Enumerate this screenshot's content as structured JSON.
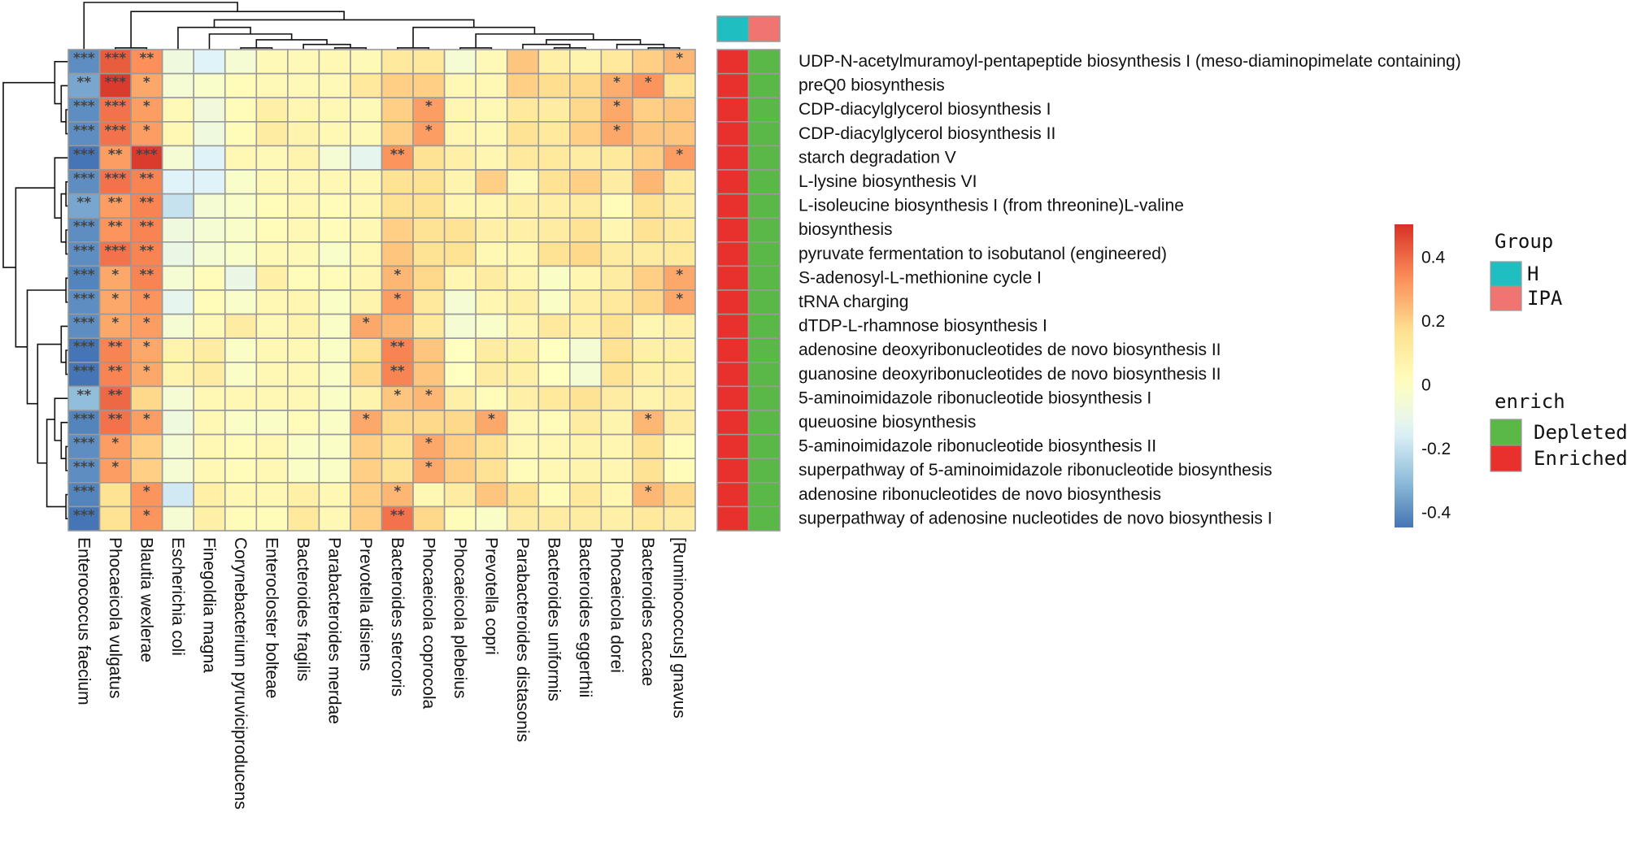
{
  "chart_data": {
    "type": "heatmap",
    "columns": [
      "Enterococcus faecium",
      "Phocaeicola vulgatus",
      "Blautia wexlerae",
      "Escherichia coli",
      "Finegoldia magna",
      "Corynebacterium pyruviciproducens",
      "Enterocloster bolteae",
      "Bacteroides fragilis",
      "Parabacteroides merdae",
      "Prevotella disiens",
      "Bacteroides stercoris",
      "Phocaeicola coprocola",
      "Phocaeicola plebeius",
      "Prevotella copri",
      "Parabacteroides distasonis",
      "Bacteroides uniformis",
      "Bacteroides eggerthii",
      "Phocaeicola dorei",
      "Bacteroides caccae",
      "[Ruminococcus] gnavus"
    ],
    "rows": [
      "UDP-N-acetylmuramoyl-pentapeptide biosynthesis I (meso-diaminopimelate containing)",
      "preQ0 biosynthesis",
      "CDP-diacylglycerol biosynthesis I",
      "CDP-diacylglycerol biosynthesis II",
      "starch degradation V",
      "L-lysine biosynthesis VI",
      "L-isoleucine biosynthesis I (from threonine)L-valine",
      "biosynthesis",
      "pyruvate fermentation to isobutanol (engineered)",
      "S-adenosyl-L-methionine cycle I",
      "tRNA charging",
      "dTDP-L-rhamnose biosynthesis I",
      "adenosine deoxyribonucleotides de novo biosynthesis II",
      "guanosine deoxyribonucleotides de novo biosynthesis II",
      "5-aminoimidazole ribonucleotide biosynthesis I",
      "queuosine biosynthesis",
      "5-aminoimidazole ribonucleotide biosynthesis II",
      "superpathway of 5-aminoimidazole ribonucleotide biosynthesis",
      "adenosine ribonucleotides de novo biosynthesis",
      "superpathway of adenosine nucleotides de novo biosynthesis I"
    ],
    "values": [
      [
        -0.4,
        0.42,
        0.33,
        -0.08,
        -0.15,
        -0.05,
        0.03,
        0.03,
        0.04,
        0.03,
        0.12,
        0.12,
        -0.05,
        0.03,
        0.22,
        0.08,
        0.06,
        0.12,
        0.2,
        0.25
      ],
      [
        -0.35,
        0.48,
        0.28,
        -0.05,
        -0.03,
        0.02,
        0.03,
        0.03,
        0.03,
        0.12,
        0.2,
        0.2,
        0.04,
        0.04,
        0.2,
        0.17,
        0.18,
        0.27,
        0.32,
        0.15
      ],
      [
        -0.4,
        0.38,
        0.3,
        0.03,
        -0.07,
        0.02,
        0.08,
        0.05,
        0.04,
        0.03,
        0.2,
        0.3,
        0.05,
        0.04,
        0.12,
        0.1,
        0.18,
        0.28,
        0.2,
        0.22
      ],
      [
        -0.4,
        0.38,
        0.3,
        0.04,
        -0.08,
        0.02,
        0.1,
        0.06,
        0.04,
        0.03,
        0.2,
        0.3,
        0.05,
        0.04,
        0.15,
        0.12,
        0.2,
        0.28,
        0.22,
        0.22
      ],
      [
        -0.45,
        0.3,
        0.48,
        -0.05,
        -0.15,
        0.04,
        0.03,
        0.06,
        -0.05,
        -0.12,
        0.32,
        0.15,
        0.08,
        0.05,
        0.12,
        0.12,
        0.1,
        0.12,
        0.2,
        0.3
      ],
      [
        -0.4,
        0.38,
        0.35,
        -0.15,
        -0.15,
        -0.03,
        0.03,
        0.04,
        0.04,
        0.04,
        0.15,
        0.15,
        0.06,
        0.2,
        0.03,
        0.15,
        0.2,
        0.1,
        0.25,
        0.12
      ],
      [
        -0.35,
        0.3,
        0.35,
        -0.2,
        -0.05,
        -0.03,
        0.02,
        0.04,
        0.02,
        0.04,
        0.15,
        0.15,
        0.05,
        0.05,
        0.08,
        0.08,
        0.1,
        0.02,
        0.15,
        0.1
      ],
      [
        -0.4,
        0.32,
        0.35,
        -0.08,
        -0.05,
        -0.03,
        0.02,
        0.04,
        0.02,
        0.04,
        0.2,
        0.15,
        0.15,
        0.08,
        0.08,
        0.1,
        0.15,
        0.05,
        0.15,
        0.12
      ],
      [
        -0.4,
        0.38,
        0.35,
        -0.1,
        -0.05,
        -0.03,
        0.03,
        0.03,
        -0.03,
        0.04,
        0.22,
        0.15,
        0.15,
        0.04,
        0.05,
        0.15,
        0.18,
        0.1,
        0.1,
        0.12
      ],
      [
        -0.42,
        0.28,
        0.35,
        -0.05,
        0.02,
        -0.1,
        0.08,
        0.02,
        0.02,
        0.05,
        0.25,
        0.18,
        0.05,
        0.1,
        0.05,
        -0.02,
        0.05,
        0.1,
        0.2,
        0.28
      ],
      [
        -0.4,
        0.28,
        0.32,
        -0.12,
        0.02,
        -0.03,
        0.04,
        0.05,
        -0.02,
        0.06,
        0.3,
        0.12,
        -0.05,
        0.05,
        0.08,
        -0.02,
        0.08,
        0.12,
        0.18,
        0.28
      ],
      [
        -0.4,
        0.28,
        0.3,
        -0.05,
        0.03,
        0.1,
        0.03,
        0.06,
        -0.02,
        0.28,
        0.25,
        0.12,
        -0.05,
        -0.03,
        0.05,
        0.12,
        0.08,
        0.15,
        0.05,
        0.08
      ],
      [
        -0.45,
        0.35,
        0.28,
        0.06,
        0.1,
        -0.02,
        0.04,
        0.04,
        -0.02,
        0.15,
        0.35,
        0.22,
        0.0,
        0.1,
        0.08,
        0.0,
        -0.05,
        0.15,
        0.08,
        0.08
      ],
      [
        -0.45,
        0.35,
        0.28,
        0.06,
        0.1,
        -0.02,
        0.04,
        0.04,
        -0.02,
        0.18,
        0.35,
        0.22,
        0.0,
        0.1,
        0.08,
        0.0,
        -0.05,
        0.15,
        0.08,
        0.08
      ],
      [
        -0.3,
        0.4,
        0.18,
        -0.05,
        0.04,
        0.04,
        0.04,
        0.04,
        -0.02,
        0.06,
        0.22,
        0.25,
        0.08,
        0.02,
        0.08,
        0.12,
        0.15,
        0.1,
        0.06,
        0.08
      ],
      [
        -0.42,
        0.38,
        0.3,
        -0.08,
        0.04,
        -0.02,
        -0.02,
        0.02,
        -0.02,
        0.28,
        0.18,
        0.18,
        0.18,
        0.28,
        0.04,
        0.02,
        0.1,
        0.06,
        0.25,
        0.1
      ],
      [
        -0.4,
        0.3,
        0.2,
        -0.05,
        0.04,
        0.02,
        0.04,
        -0.02,
        -0.02,
        0.2,
        0.15,
        0.28,
        0.2,
        0.15,
        0.04,
        0.04,
        0.06,
        0.05,
        0.15,
        0.02
      ],
      [
        -0.4,
        0.3,
        0.2,
        -0.05,
        0.04,
        0.02,
        0.04,
        -0.02,
        -0.02,
        0.2,
        0.15,
        0.28,
        0.2,
        0.15,
        0.02,
        0.04,
        0.06,
        0.05,
        0.15,
        0.02
      ],
      [
        -0.42,
        0.15,
        0.32,
        -0.18,
        0.08,
        0.04,
        0.04,
        0.08,
        0.04,
        0.2,
        0.25,
        0.04,
        0.1,
        0.22,
        0.15,
        0.02,
        0.12,
        0.05,
        0.25,
        0.18
      ],
      [
        -0.45,
        0.15,
        0.32,
        -0.05,
        0.08,
        0.02,
        0.02,
        0.12,
        0.04,
        0.2,
        0.38,
        0.18,
        0.02,
        -0.02,
        0.1,
        0.1,
        0.1,
        0.08,
        0.12,
        0.1
      ]
    ],
    "significance": [
      [
        "***",
        "***",
        "**",
        "",
        "",
        "",
        "",
        "",
        "",
        "",
        "",
        "",
        "",
        "",
        "",
        "",
        "",
        "",
        "",
        "*"
      ],
      [
        "**",
        "***",
        "*",
        "",
        "",
        "",
        "",
        "",
        "",
        "",
        "",
        "",
        "",
        "",
        "",
        "",
        "",
        "*",
        "*",
        ""
      ],
      [
        "***",
        "***",
        "*",
        "",
        "",
        "",
        "",
        "",
        "",
        "",
        "",
        "*",
        "",
        "",
        "",
        "",
        "",
        "*",
        "",
        ""
      ],
      [
        "***",
        "***",
        "*",
        "",
        "",
        "",
        "",
        "",
        "",
        "",
        "",
        "*",
        "",
        "",
        "",
        "",
        "",
        "*",
        "",
        ""
      ],
      [
        "***",
        "**",
        "***",
        "",
        "",
        "",
        "",
        "",
        "",
        "",
        "**",
        "",
        "",
        "",
        "",
        "",
        "",
        "",
        "",
        "*"
      ],
      [
        "***",
        "***",
        "**",
        "",
        "",
        "",
        "",
        "",
        "",
        "",
        "",
        "",
        "",
        "",
        "",
        "",
        "",
        "",
        "",
        ""
      ],
      [
        "**",
        "**",
        "**",
        "",
        "",
        "",
        "",
        "",
        "",
        "",
        "",
        "",
        "",
        "",
        "",
        "",
        "",
        "",
        "",
        ""
      ],
      [
        "***",
        "**",
        "**",
        "",
        "",
        "",
        "",
        "",
        "",
        "",
        "",
        "",
        "",
        "",
        "",
        "",
        "",
        "",
        "",
        ""
      ],
      [
        "***",
        "***",
        "**",
        "",
        "",
        "",
        "",
        "",
        "",
        "",
        "",
        "",
        "",
        "",
        "",
        "",
        "",
        "",
        "",
        ""
      ],
      [
        "***",
        "*",
        "**",
        "",
        "",
        "",
        "",
        "",
        "",
        "",
        "*",
        "",
        "",
        "",
        "",
        "",
        "",
        "",
        "",
        "*"
      ],
      [
        "***",
        "*",
        "*",
        "",
        "",
        "",
        "",
        "",
        "",
        "",
        "*",
        "",
        "",
        "",
        "",
        "",
        "",
        "",
        "",
        "*"
      ],
      [
        "***",
        "*",
        "*",
        "",
        "",
        "",
        "",
        "",
        "",
        "*",
        "",
        "",
        "",
        "",
        "",
        "",
        "",
        "",
        "",
        ""
      ],
      [
        "***",
        "**",
        "*",
        "",
        "",
        "",
        "",
        "",
        "",
        "",
        "**",
        "",
        "",
        "",
        "",
        "",
        "",
        "",
        "",
        ""
      ],
      [
        "***",
        "**",
        "*",
        "",
        "",
        "",
        "",
        "",
        "",
        "",
        "**",
        "",
        "",
        "",
        "",
        "",
        "",
        "",
        "",
        ""
      ],
      [
        "**",
        "**",
        "",
        "",
        "",
        "",
        "",
        "",
        "",
        "",
        "*",
        "*",
        "",
        "",
        "",
        "",
        "",
        "",
        "",
        ""
      ],
      [
        "***",
        "**",
        "*",
        "",
        "",
        "",
        "",
        "",
        "",
        "*",
        "",
        "",
        "",
        "*",
        "",
        "",
        "",
        "",
        "*",
        ""
      ],
      [
        "***",
        "*",
        "",
        "",
        "",
        "",
        "",
        "",
        "",
        "",
        "",
        "*",
        "",
        "",
        "",
        "",
        "",
        "",
        "",
        ""
      ],
      [
        "***",
        "*",
        "",
        "",
        "",
        "",
        "",
        "",
        "",
        "",
        "",
        "*",
        "",
        "",
        "",
        "",
        "",
        "",
        "",
        ""
      ],
      [
        "***",
        "",
        "*",
        "",
        "",
        "",
        "",
        "",
        "",
        "",
        "*",
        "",
        "",
        "",
        "",
        "",
        "",
        "",
        "*",
        ""
      ],
      [
        "***",
        "",
        "*",
        "",
        "",
        "",
        "",
        "",
        "",
        "",
        "**",
        "",
        "",
        "",
        "",
        "",
        "",
        "",
        "",
        ""
      ]
    ],
    "color_scale": {
      "min": -0.45,
      "max": 0.5,
      "ticks": [
        "0.4",
        "0.2",
        "0",
        "-0.2",
        "-0.4"
      ],
      "tick_values": [
        0.4,
        0.2,
        0,
        -0.2,
        -0.4
      ],
      "colors": [
        "#4575b4",
        "#91bfdb",
        "#e0f3f8",
        "#ffffbf",
        "#fee090",
        "#fc8d59",
        "#d73027"
      ]
    },
    "annotation": {
      "group_columns": [
        "H",
        "IPA"
      ],
      "row_enrich": [
        "Enriched",
        "Depleted"
      ]
    },
    "legend": {
      "group": {
        "title": "Group",
        "items": [
          {
            "label": "H",
            "color": "#1fbfc1"
          },
          {
            "label": "IPA",
            "color": "#f07470"
          }
        ]
      },
      "enrich": {
        "title": "enrich",
        "items": [
          {
            "label": "Depleted",
            "color": "#5ab946"
          },
          {
            "label": "Enriched",
            "color": "#e8302c"
          }
        ]
      }
    },
    "dendrograms": {
      "rows": true,
      "columns": true
    },
    "grid": true
  }
}
